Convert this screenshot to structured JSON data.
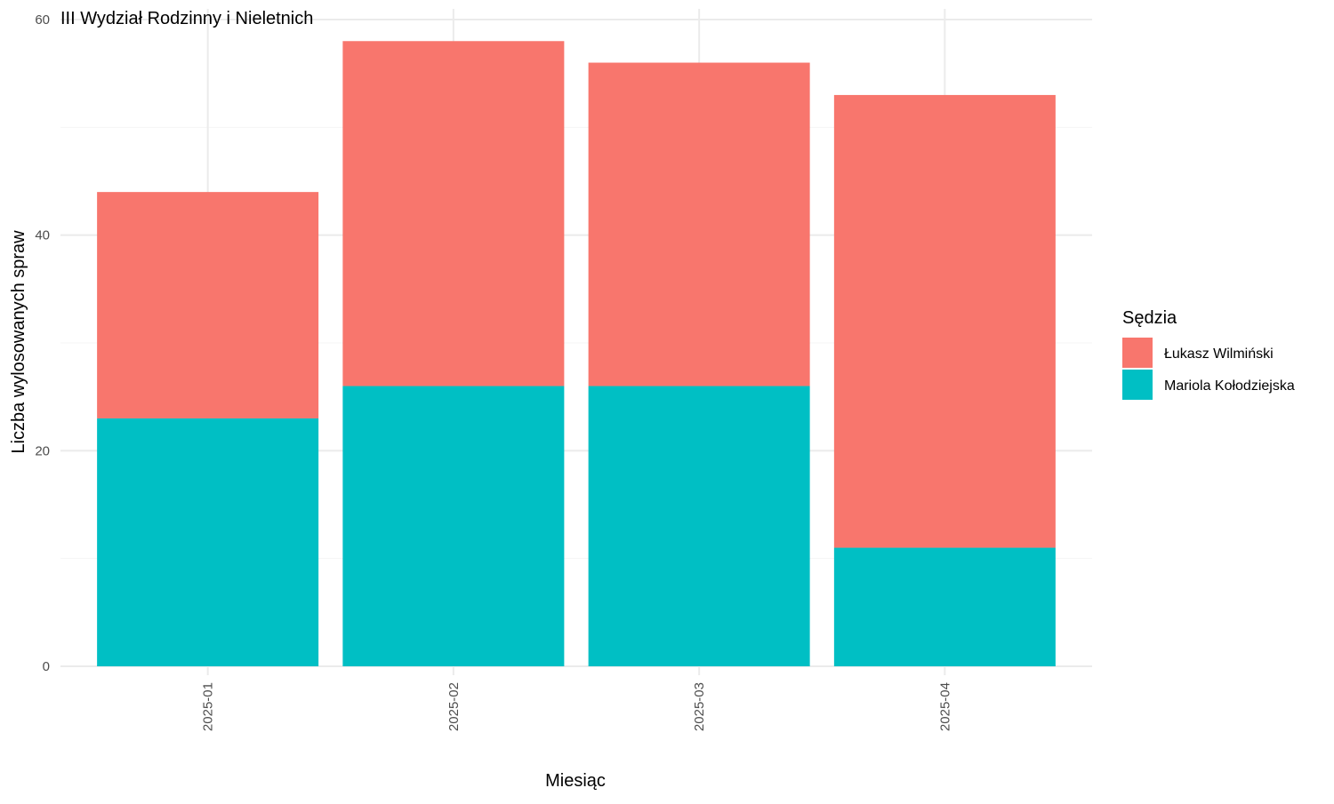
{
  "chart_data": {
    "type": "bar",
    "stacked": true,
    "title": "III Wydział Rodzinny i Nieletnich",
    "xlabel": "Miesiąc",
    "ylabel": "Liczba wylosowanych spraw",
    "categories": [
      "2025-01",
      "2025-02",
      "2025-03",
      "2025-04"
    ],
    "series": [
      {
        "name": "Mariola Kołodziejska",
        "color": "#00BFC4",
        "values": [
          23,
          26,
          26,
          11
        ]
      },
      {
        "name": "Łukasz Wilmiński",
        "color": "#F8766D",
        "values": [
          21,
          32,
          30,
          42
        ]
      }
    ],
    "ylim": [
      0,
      60
    ],
    "yticks": [
      0,
      20,
      40,
      60
    ],
    "grid": true,
    "legend": {
      "title": "Sędzia",
      "position": "right",
      "order": [
        "Łukasz Wilmiński",
        "Mariola Kołodziejska"
      ]
    }
  }
}
